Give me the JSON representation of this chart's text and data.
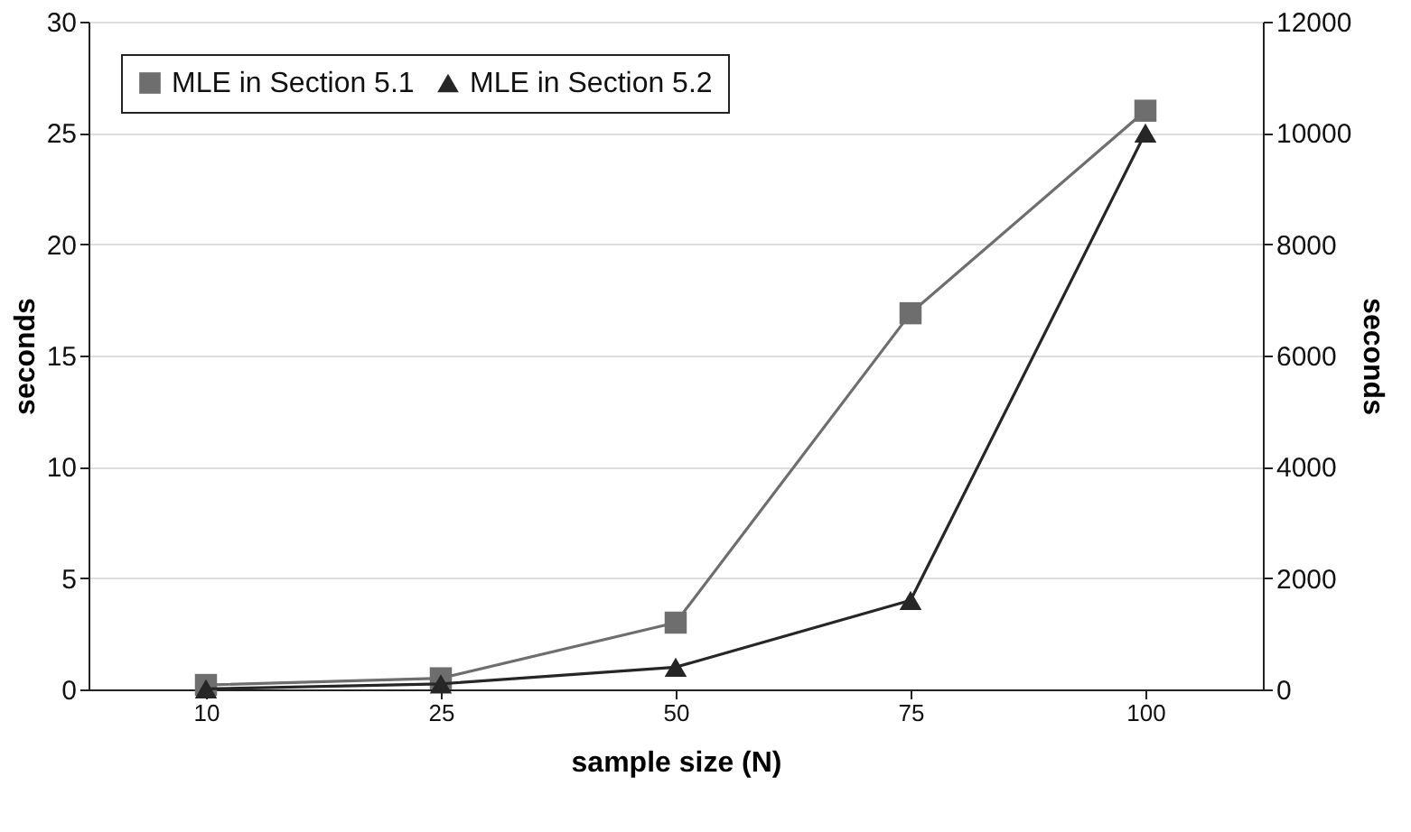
{
  "chart_data": {
    "type": "line",
    "xlabel": "sample size (N)",
    "ylabel": "seconds",
    "y2label": "seconds",
    "categories": [
      "10",
      "25",
      "50",
      "75",
      "100"
    ],
    "series": [
      {
        "name": "MLE in Section 5.1",
        "color": "#6e6e6e",
        "marker": "square",
        "values": [
          0.2,
          0.5,
          3.0,
          16.9,
          26.0
        ]
      },
      {
        "name": "MLE in Section 5.2",
        "color": "#262626",
        "marker": "triangle",
        "axis": "y2",
        "values": [
          10,
          100,
          400,
          1600,
          10000
        ]
      }
    ],
    "ylim": [
      0,
      30
    ],
    "yticks": [
      0,
      5,
      10,
      15,
      20,
      25,
      30
    ],
    "y2lim": [
      0,
      12000
    ],
    "y2ticks": [
      0,
      2000,
      4000,
      6000,
      8000,
      10000,
      12000
    ],
    "grid": "y",
    "legend": "top left",
    "line_style": "solid"
  }
}
